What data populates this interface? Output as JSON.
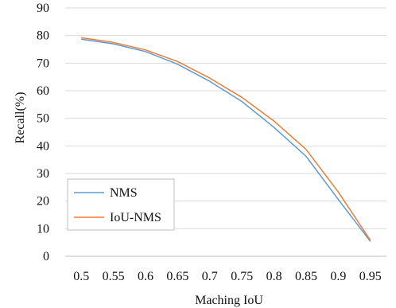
{
  "chart_data": {
    "type": "line",
    "x": [
      0.5,
      0.55,
      0.6,
      0.65,
      0.7,
      0.75,
      0.8,
      0.85,
      0.9,
      0.95
    ],
    "x_tick_labels": [
      "0.5",
      "0.55",
      "0.6",
      "0.65",
      "0.7",
      "0.75",
      "0.8",
      "0.85",
      "0.9",
      "0.95"
    ],
    "y_ticks": [
      0,
      10,
      20,
      30,
      40,
      50,
      60,
      70,
      80,
      90
    ],
    "y_tick_labels": [
      "0",
      "10",
      "20",
      "30",
      "40",
      "50",
      "60",
      "70",
      "80",
      "90"
    ],
    "series": [
      {
        "name": "NMS",
        "color": "#5B9BD5",
        "values": [
          78.7,
          77.0,
          74.2,
          69.6,
          63.4,
          56.1,
          46.7,
          36.2,
          20.6,
          5.4
        ]
      },
      {
        "name": "IoU-NMS",
        "color": "#ED7D31",
        "values": [
          79.2,
          77.5,
          74.8,
          70.6,
          64.6,
          57.6,
          49.0,
          38.7,
          23.3,
          5.8
        ]
      }
    ],
    "xlabel": "Maching IoU",
    "ylabel": "Recall(%)",
    "xlim": [
      0.475,
      0.975
    ],
    "ylim": [
      0,
      90
    ],
    "grid": "horizontal",
    "legend_position": "bottom-left"
  }
}
